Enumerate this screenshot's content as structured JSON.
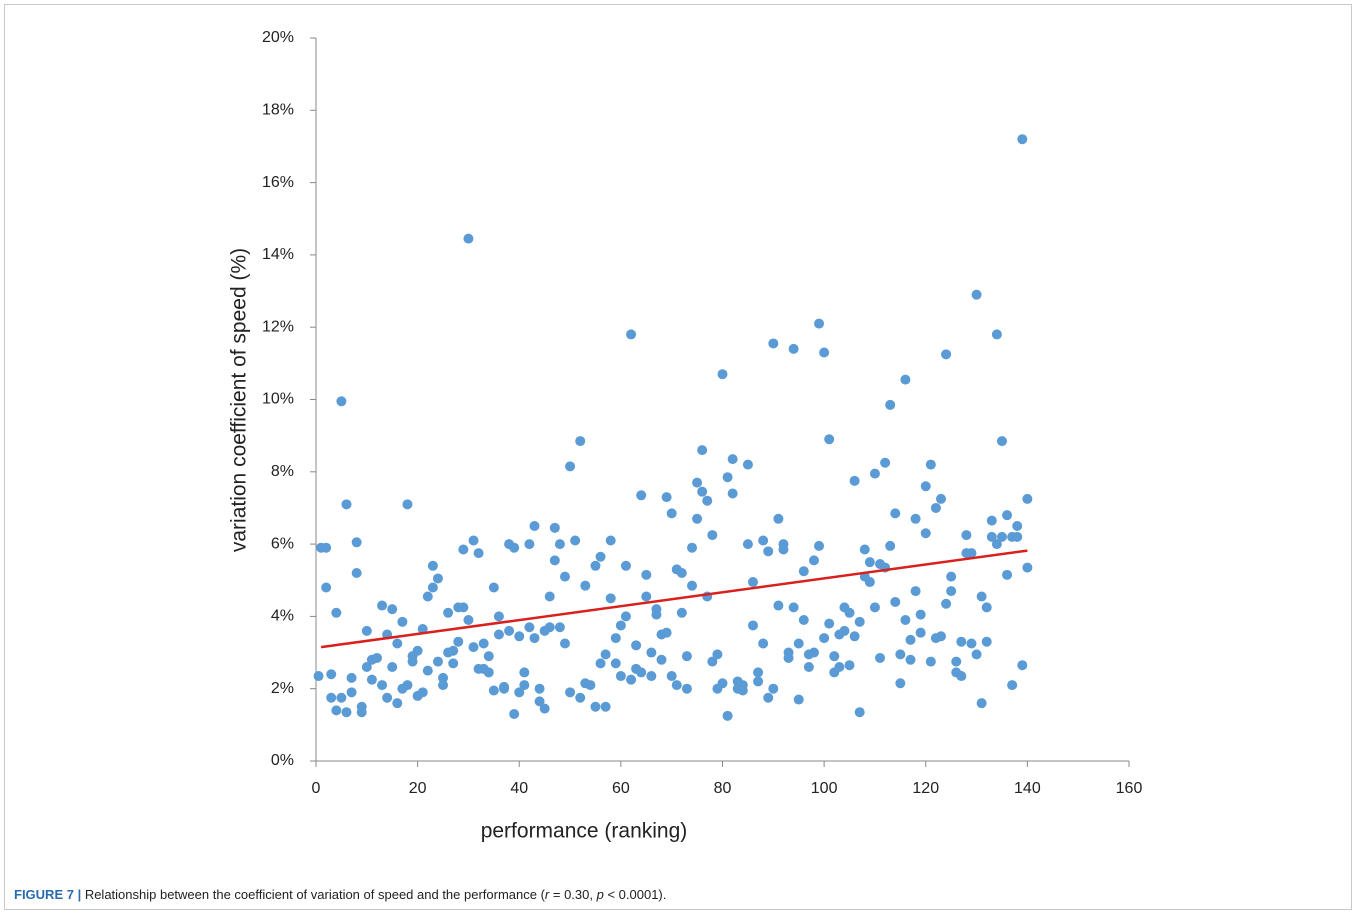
{
  "chart_data": {
    "type": "scatter",
    "y_label": "variation coefficient of speed (%)",
    "x_label": "performance  (ranking)",
    "xlim": [
      0,
      160
    ],
    "xticks": [
      0,
      20,
      40,
      60,
      80,
      100,
      120,
      140,
      160
    ],
    "ylim": [
      0,
      20
    ],
    "yticks": [
      {
        "value": 0,
        "label": "0%"
      },
      {
        "value": 2,
        "label": "2%"
      },
      {
        "value": 4,
        "label": "4%"
      },
      {
        "value": 6,
        "label": "6%"
      },
      {
        "value": 8,
        "label": "8%"
      },
      {
        "value": 10,
        "label": "10%"
      },
      {
        "value": 12,
        "label": "12%"
      },
      {
        "value": 14,
        "label": "14%"
      },
      {
        "value": 16,
        "label": "16%"
      },
      {
        "value": 18,
        "label": "18%"
      },
      {
        "value": 20,
        "label": "20%"
      }
    ],
    "grid": false,
    "points": {
      "color": "#5b9bd5",
      "x": [
        0.5,
        1,
        2,
        2,
        3,
        3,
        4,
        4,
        5,
        5,
        6,
        6,
        7,
        7,
        8,
        8,
        9,
        9,
        10,
        10,
        11,
        11,
        12,
        13,
        13,
        14,
        14,
        15,
        15,
        16,
        16,
        17,
        17,
        18,
        18,
        19,
        19,
        20,
        20,
        21,
        21,
        22,
        22,
        23,
        23,
        24,
        24,
        25,
        25,
        26,
        26,
        27,
        27,
        28,
        28,
        29,
        29,
        30,
        30,
        31,
        31,
        32,
        32,
        33,
        33,
        34,
        34,
        35,
        35,
        36,
        36,
        37,
        37,
        38,
        38,
        39,
        39,
        40,
        40,
        41,
        41,
        42,
        42,
        43,
        43,
        44,
        44,
        45,
        45,
        46,
        46,
        47,
        47,
        48,
        48,
        49,
        49,
        50,
        50,
        51,
        52,
        52,
        53,
        53,
        54,
        55,
        55,
        56,
        56,
        57,
        57,
        58,
        58,
        59,
        59,
        60,
        60,
        61,
        61,
        62,
        62,
        63,
        63,
        64,
        64,
        65,
        65,
        66,
        66,
        67,
        67,
        68,
        68,
        69,
        69,
        70,
        70,
        71,
        71,
        72,
        72,
        73,
        73,
        74,
        74,
        75,
        75,
        76,
        76,
        77,
        77,
        78,
        78,
        79,
        79,
        80,
        80,
        81,
        81,
        82,
        82,
        83,
        83,
        84,
        84,
        85,
        85,
        86,
        86,
        87,
        87,
        88,
        88,
        89,
        89,
        90,
        90,
        91,
        91,
        92,
        92,
        93,
        93,
        94,
        94,
        95,
        95,
        96,
        96,
        97,
        97,
        98,
        98,
        99,
        99,
        100,
        100,
        101,
        101,
        102,
        102,
        103,
        103,
        104,
        104,
        105,
        105,
        106,
        106,
        107,
        107,
        108,
        108,
        109,
        109,
        110,
        110,
        111,
        111,
        112,
        112,
        113,
        113,
        114,
        114,
        115,
        115,
        116,
        116,
        117,
        117,
        118,
        118,
        119,
        119,
        120,
        120,
        121,
        121,
        122,
        122,
        123,
        123,
        124,
        124,
        125,
        125,
        126,
        126,
        127,
        127,
        128,
        128,
        129,
        129,
        130,
        130,
        131,
        131,
        132,
        132,
        133,
        133,
        134,
        134,
        135,
        135,
        136,
        136,
        137,
        137,
        138,
        138,
        139,
        139,
        140,
        140
      ],
      "y": [
        2.35,
        5.9,
        5.9,
        4.8,
        2.4,
        1.75,
        4.1,
        1.4,
        9.95,
        1.75,
        7.1,
        1.35,
        2.3,
        1.9,
        6.05,
        5.2,
        1.5,
        1.35,
        3.6,
        2.6,
        2.8,
        2.25,
        2.85,
        2.1,
        4.3,
        3.5,
        1.75,
        4.2,
        2.6,
        1.6,
        3.25,
        3.85,
        2.0,
        7.1,
        2.1,
        2.9,
        2.75,
        3.05,
        1.8,
        3.65,
        1.9,
        4.55,
        2.5,
        4.8,
        5.4,
        5.05,
        2.75,
        2.3,
        2.1,
        4.1,
        3.0,
        3.05,
        2.7,
        4.25,
        3.3,
        5.85,
        4.25,
        14.45,
        3.9,
        6.1,
        3.15,
        5.75,
        2.55,
        2.55,
        3.25,
        2.9,
        2.45,
        4.8,
        1.95,
        3.5,
        4.0,
        2.0,
        2.05,
        6.0,
        3.6,
        5.9,
        1.3,
        3.45,
        1.9,
        2.45,
        2.1,
        6.0,
        3.7,
        6.5,
        3.4,
        2.0,
        1.65,
        3.6,
        1.45,
        3.7,
        4.55,
        6.45,
        5.55,
        6.0,
        3.7,
        5.1,
        3.25,
        8.15,
        1.9,
        6.1,
        8.85,
        1.75,
        4.85,
        2.15,
        2.1,
        5.4,
        1.5,
        5.65,
        2.7,
        2.95,
        1.5,
        6.1,
        4.5,
        3.4,
        2.7,
        3.75,
        2.35,
        5.4,
        4.0,
        11.8,
        2.25,
        3.2,
        2.55,
        7.35,
        2.45,
        5.15,
        4.55,
        3.0,
        2.35,
        4.2,
        4.05,
        3.5,
        2.8,
        7.3,
        3.55,
        6.85,
        2.35,
        5.3,
        2.1,
        5.2,
        4.1,
        2.9,
        2.0,
        5.9,
        4.85,
        7.7,
        6.7,
        8.6,
        7.45,
        7.2,
        4.55,
        6.25,
        2.75,
        2.95,
        2.0,
        10.7,
        2.15,
        7.85,
        1.25,
        8.35,
        7.4,
        2.2,
        2.0,
        2.1,
        1.95,
        8.2,
        6.0,
        4.95,
        3.75,
        2.45,
        2.2,
        6.1,
        3.25,
        5.8,
        1.75,
        11.55,
        2.0,
        6.7,
        4.3,
        6.0,
        5.85,
        3.0,
        2.85,
        11.4,
        4.25,
        3.25,
        1.7,
        5.25,
        3.9,
        2.95,
        2.6,
        5.55,
        3.0,
        12.1,
        5.95,
        11.3,
        3.4,
        8.9,
        3.8,
        2.9,
        2.45,
        3.5,
        2.6,
        4.25,
        3.6,
        4.1,
        2.65,
        7.75,
        3.45,
        3.85,
        1.35,
        5.85,
        5.1,
        5.5,
        4.95,
        7.95,
        4.25,
        5.45,
        2.85,
        8.25,
        5.35,
        9.85,
        5.95,
        6.85,
        4.4,
        2.95,
        2.15,
        10.55,
        3.9,
        3.35,
        2.8,
        6.7,
        4.7,
        4.05,
        3.55,
        7.6,
        6.3,
        8.2,
        2.75,
        7.0,
        3.4,
        7.25,
        3.45,
        11.25,
        4.35,
        5.1,
        4.7,
        2.75,
        2.45,
        3.3,
        2.35,
        6.25,
        5.75,
        5.75,
        3.25,
        12.9,
        2.95,
        4.55,
        1.6,
        4.25,
        3.3,
        6.65,
        6.2,
        11.8,
        6.0,
        8.85,
        6.2,
        6.8,
        5.15,
        6.2,
        2.1,
        6.5,
        6.2,
        17.2,
        2.65,
        7.25,
        5.35
      ]
    },
    "trendline": {
      "color": "#d9201c",
      "x": [
        1,
        140
      ],
      "y": [
        3.15,
        5.82
      ]
    }
  },
  "caption": [
    "FIGURE 7 |",
    " Relationship between the coefficient of variation of speed and the performance (",
    "r",
    " = 0.30, ",
    "p",
    " < 0.0001)."
  ]
}
